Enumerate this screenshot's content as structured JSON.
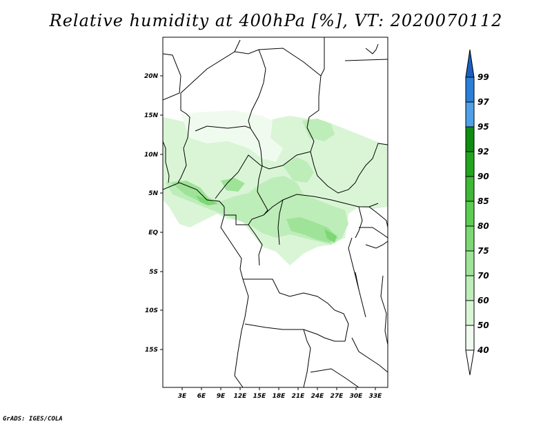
{
  "title": "Relative humidity at 400hPa [%], VT: 2020070112",
  "credit": "GrADS: IGES/COLA",
  "map": {
    "lat_labels": [
      "20N",
      "15N",
      "10N",
      "5N",
      "EQ",
      "5S",
      "10S",
      "15S"
    ],
    "lon_labels": [
      "3E",
      "6E",
      "9E",
      "12E",
      "15E",
      "18E",
      "21E",
      "24E",
      "27E",
      "30E",
      "33E"
    ]
  },
  "colorbar": {
    "levels": [
      "40",
      "50",
      "60",
      "70",
      "75",
      "80",
      "85",
      "90",
      "92",
      "95",
      "97",
      "99"
    ],
    "colors": [
      "#f0fbef",
      "#d9f5d6",
      "#bdedb8",
      "#9ee397",
      "#7cd874",
      "#5ccd53",
      "#3eb835",
      "#22a51e",
      "#0f8d12",
      "#4ea0e8",
      "#2a7fd8",
      "#1a5fc0"
    ]
  }
}
